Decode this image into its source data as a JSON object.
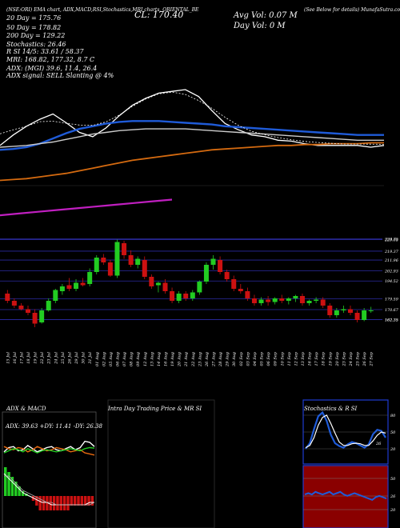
{
  "header": {
    "top_line": "(NSE:ORI) EMA chart, ADX,MACD,RSI,Stochastics,MRI charts, ORIENTAL_BE",
    "cl_label": "CL: 170.40",
    "vol_label": "Avg Vol: 0.07 M",
    "day_vol_label": "Day Vol: 0   M",
    "munafa": "(See Below for details) MunafaSutra.com",
    "ema20": "20   Day = 175.76",
    "ema50": "50   Day = 178.82",
    "ema200": "200   Day = 129.22",
    "stoch": "Stochastics: 26.46",
    "rsi": "R        SI 14/5: 33.61 / 58.37",
    "mri": "MRI: 168.82,  177.32,   8.7 C",
    "adx": "ADX:                            (MGI) 39.6,  11.4,  26.4",
    "adx_signal": "ADX  signal: SELL  Slanting @ 4%"
  },
  "dates": [
    "15 Jul",
    "16 Jul",
    "17 Jul",
    "18 Jul",
    "19 Jul",
    "22 Jul",
    "23 Jul",
    "24 Jul",
    "25 Jul",
    "26 Jul",
    "29 Jul",
    "30 Jul",
    "31 Jul",
    "01 Aug",
    "02 Aug",
    "05 Aug",
    "06 Aug",
    "07 Aug",
    "08 Aug",
    "09 Aug",
    "12 Aug",
    "13 Aug",
    "14 Aug",
    "16 Aug",
    "19 Aug",
    "20 Aug",
    "21 Aug",
    "22 Aug",
    "23 Aug",
    "26 Aug",
    "27 Aug",
    "28 Aug",
    "29 Aug",
    "30 Aug",
    "02 Sep",
    "03 Sep",
    "04 Sep",
    "05 Sep",
    "06 Sep",
    "09 Sep",
    "10 Sep",
    "11 Sep",
    "12 Sep",
    "13 Sep",
    "16 Sep",
    "17 Sep",
    "18 Sep",
    "19 Sep",
    "20 Sep",
    "23 Sep",
    "24 Sep",
    "25 Sep",
    "26 Sep",
    "27 Sep"
  ],
  "chart_data": [
    {
      "type": "candlestick",
      "name": "price",
      "price_ticks": [
        229.75,
        229.05,
        219.37,
        211.96,
        202.93,
        194.52,
        179.59,
        170.67,
        162.35,
        162.35
      ],
      "candles": [
        {
          "o": 184,
          "h": 187,
          "l": 176,
          "c": 178
        },
        {
          "o": 178,
          "h": 180,
          "l": 172,
          "c": 174
        },
        {
          "o": 174,
          "h": 176,
          "l": 170,
          "c": 171
        },
        {
          "o": 171,
          "h": 174,
          "l": 166,
          "c": 168
        },
        {
          "o": 168,
          "h": 171,
          "l": 156,
          "c": 159
        },
        {
          "o": 160,
          "h": 172,
          "l": 159,
          "c": 170
        },
        {
          "o": 170,
          "h": 180,
          "l": 169,
          "c": 178
        },
        {
          "o": 178,
          "h": 188,
          "l": 176,
          "c": 187
        },
        {
          "o": 186,
          "h": 192,
          "l": 183,
          "c": 190
        },
        {
          "o": 191,
          "h": 197,
          "l": 186,
          "c": 188
        },
        {
          "o": 188,
          "h": 196,
          "l": 186,
          "c": 193
        },
        {
          "o": 193,
          "h": 197,
          "l": 190,
          "c": 191
        },
        {
          "o": 192,
          "h": 205,
          "l": 190,
          "c": 202
        },
        {
          "o": 202,
          "h": 216,
          "l": 200,
          "c": 214
        },
        {
          "o": 214,
          "h": 217,
          "l": 208,
          "c": 210
        },
        {
          "o": 210,
          "h": 212,
          "l": 198,
          "c": 199
        },
        {
          "o": 199,
          "h": 229,
          "l": 197,
          "c": 227
        },
        {
          "o": 226,
          "h": 228,
          "l": 213,
          "c": 216
        },
        {
          "o": 216,
          "h": 220,
          "l": 206,
          "c": 208
        },
        {
          "o": 208,
          "h": 215,
          "l": 205,
          "c": 213
        },
        {
          "o": 212,
          "h": 215,
          "l": 196,
          "c": 198
        },
        {
          "o": 198,
          "h": 200,
          "l": 188,
          "c": 190
        },
        {
          "o": 191,
          "h": 194,
          "l": 185,
          "c": 193
        },
        {
          "o": 193,
          "h": 196,
          "l": 184,
          "c": 186
        },
        {
          "o": 186,
          "h": 189,
          "l": 176,
          "c": 178
        },
        {
          "o": 178,
          "h": 186,
          "l": 176,
          "c": 184
        },
        {
          "o": 184,
          "h": 186,
          "l": 178,
          "c": 180
        },
        {
          "o": 180,
          "h": 187,
          "l": 178,
          "c": 185
        },
        {
          "o": 185,
          "h": 195,
          "l": 183,
          "c": 194
        },
        {
          "o": 194,
          "h": 210,
          "l": 192,
          "c": 208
        },
        {
          "o": 208,
          "h": 216,
          "l": 204,
          "c": 213
        },
        {
          "o": 212,
          "h": 215,
          "l": 200,
          "c": 202
        },
        {
          "o": 202,
          "h": 204,
          "l": 194,
          "c": 196
        },
        {
          "o": 196,
          "h": 199,
          "l": 186,
          "c": 188
        },
        {
          "o": 188,
          "h": 192,
          "l": 184,
          "c": 186
        },
        {
          "o": 186,
          "h": 189,
          "l": 178,
          "c": 180
        },
        {
          "o": 180,
          "h": 183,
          "l": 174,
          "c": 176
        },
        {
          "o": 176,
          "h": 181,
          "l": 174,
          "c": 179
        },
        {
          "o": 179,
          "h": 182,
          "l": 174,
          "c": 177
        },
        {
          "o": 177,
          "h": 181,
          "l": 175,
          "c": 180
        },
        {
          "o": 180,
          "h": 183,
          "l": 176,
          "c": 178
        },
        {
          "o": 178,
          "h": 181,
          "l": 175,
          "c": 180
        },
        {
          "o": 180,
          "h": 183,
          "l": 177,
          "c": 182
        },
        {
          "o": 182,
          "h": 184,
          "l": 174,
          "c": 176
        },
        {
          "o": 176,
          "h": 179,
          "l": 174,
          "c": 178
        },
        {
          "o": 178,
          "h": 181,
          "l": 176,
          "c": 179
        },
        {
          "o": 179,
          "h": 181,
          "l": 172,
          "c": 174
        },
        {
          "o": 174,
          "h": 176,
          "l": 164,
          "c": 166
        },
        {
          "o": 166,
          "h": 172,
          "l": 164,
          "c": 170
        },
        {
          "o": 170,
          "h": 174,
          "l": 168,
          "c": 171
        },
        {
          "o": 171,
          "h": 174,
          "l": 166,
          "c": 168
        },
        {
          "o": 168,
          "h": 170,
          "l": 160,
          "c": 162
        },
        {
          "o": 162,
          "h": 172,
          "l": 161,
          "c": 170
        },
        {
          "o": 170,
          "h": 173,
          "l": 168,
          "c": 170
        }
      ],
      "ylim": [
        150,
        232
      ]
    },
    {
      "type": "line",
      "name": "ema_panel",
      "series": [
        {
          "name": "price",
          "color": "#ffffff",
          "values": [
            150,
            162,
            172,
            180,
            186,
            176,
            165,
            160,
            170,
            184,
            196,
            204,
            210,
            212,
            214,
            206,
            190,
            175,
            168,
            162,
            160,
            156,
            155,
            152,
            150,
            150,
            150,
            150,
            148,
            150
          ]
        },
        {
          "name": "20",
          "color": "#1f5bd8",
          "values": [
            145,
            146,
            148,
            152,
            158,
            164,
            169,
            172,
            175,
            177,
            178,
            178,
            178,
            177,
            176,
            175,
            174,
            172,
            171,
            170,
            169,
            168,
            167,
            166,
            165,
            164,
            163,
            162,
            162,
            162
          ]
        },
        {
          "name": "50",
          "color": "#cccccc",
          "values": [
            148,
            149,
            150,
            152,
            154,
            157,
            160,
            163,
            165,
            167,
            168,
            169,
            169,
            169,
            169,
            168,
            167,
            166,
            165,
            164,
            163,
            162,
            161,
            160,
            159,
            158,
            157,
            156,
            156,
            156
          ]
        },
        {
          "name": "200",
          "color": "#d46a10",
          "values": [
            110,
            111,
            112,
            114,
            116,
            118,
            121,
            124,
            127,
            130,
            133,
            135,
            137,
            139,
            141,
            143,
            145,
            146,
            147,
            148,
            149,
            150,
            150,
            151,
            151,
            152,
            152,
            152,
            153,
            153
          ]
        },
        {
          "name": "ema_long",
          "color": "#c01fc0",
          "values": [
            70,
            72,
            74,
            76,
            78,
            80,
            82,
            84,
            86,
            88
          ]
        }
      ],
      "ylim": [
        60,
        225
      ]
    },
    {
      "type": "line",
      "name": "adx_macd",
      "title": "ADX  & MACD",
      "stats": "ADX: 39.63  +DY: 11.41  -DY: 26.38",
      "series": [
        {
          "name": "adx",
          "color": "#ffffff",
          "values": [
            20,
            28,
            30,
            22,
            24,
            32,
            26,
            20,
            24,
            28,
            30,
            24,
            22,
            26,
            30,
            24,
            28,
            40,
            38,
            30
          ]
        },
        {
          "name": "+di",
          "color": "#e86a10",
          "values": [
            30,
            26,
            24,
            28,
            26,
            20,
            24,
            30,
            26,
            22,
            24,
            28,
            26,
            24,
            20,
            22,
            24,
            18,
            16,
            14
          ]
        },
        {
          "name": "-di",
          "color": "#22cc22",
          "values": [
            18,
            22,
            26,
            24,
            20,
            26,
            22,
            18,
            22,
            24,
            22,
            20,
            22,
            24,
            26,
            24,
            22,
            26,
            28,
            27
          ]
        }
      ],
      "macd_values": [
        6,
        5,
        4,
        3,
        2,
        1,
        0.5,
        0,
        -1,
        -2,
        -3,
        -3,
        -3,
        -3,
        -3,
        -3,
        -3,
        -3,
        -3,
        -2,
        -2,
        -2,
        -2,
        -2,
        -2,
        -2
      ],
      "ylim": [
        0,
        50
      ]
    },
    {
      "type": "line",
      "name": "intraday",
      "title": "Intra  Day  Trading  Price   & MR               SI",
      "series": []
    },
    {
      "type": "line",
      "name": "stochastics_rsi",
      "title": "Stochastics & R                     SI",
      "stoch_ticks": [
        "80",
        "50",
        "20"
      ],
      "rsi_ticks": [
        "50",
        "26",
        "20"
      ],
      "stoch_label": "26",
      "stoch_series": [
        {
          "name": "k",
          "color": "#1f5bd8",
          "values": [
            20,
            30,
            55,
            78,
            85,
            70,
            45,
            30,
            25,
            22,
            28,
            32,
            30,
            26,
            22,
            28,
            46,
            54,
            52,
            40
          ]
        },
        {
          "name": "d",
          "color": "#ffffff",
          "values": [
            22,
            26,
            40,
            62,
            76,
            80,
            65,
            48,
            32,
            26,
            26,
            29,
            30,
            29,
            26,
            26,
            34,
            44,
            50,
            48
          ]
        }
      ],
      "rsi_values": [
        52,
        53,
        52,
        54,
        53,
        52,
        53,
        54,
        52,
        53,
        54,
        52,
        51,
        52,
        53,
        52,
        51,
        50,
        49,
        48,
        50,
        51,
        50,
        49
      ],
      "ylim": [
        0,
        100
      ]
    }
  ],
  "colors": {
    "up": "#22cc22",
    "down": "#cc1111",
    "grid": "#2a2aa0",
    "bg": "#000000"
  }
}
